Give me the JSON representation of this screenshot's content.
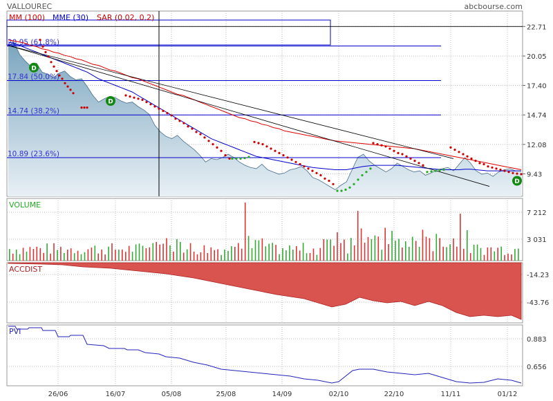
{
  "header": {
    "symbol": "VALLOUREC",
    "source": "abcbourse.com"
  },
  "legend": [
    {
      "label": "MM (100)",
      "color": "#dd0000"
    },
    {
      "label": "MME (30)",
      "color": "#0000cc"
    },
    {
      "label": "SAR (0.02, 0.2)",
      "color": "#cc0000"
    }
  ],
  "colors": {
    "price_fill_top": "#7aa5bf",
    "price_fill_bottom": "#e8f0f5",
    "price_line": "#4a6f8a",
    "mm100": "#dd0000",
    "mme30": "#0000cc",
    "fib": "#0000cc",
    "sar_red": "#cc0000",
    "sar_green": "#22aa22",
    "vol_up": "#33aa33",
    "vol_down": "#dd3333",
    "accdist_fill": "#d9534f",
    "pvi": "#2222bb",
    "grid": "#bbbbbb",
    "dividend": "#118811"
  },
  "chart_data": {
    "type": "line",
    "x_ticks": [
      "26/06",
      "16/07",
      "05/08",
      "25/08",
      "14/09",
      "02/10",
      "22/10",
      "11/11",
      "01/12"
    ],
    "price_panel": {
      "y_ticks": [
        "22.71",
        "20.05",
        "17.40",
        "14.74",
        "12.08",
        "9.43"
      ],
      "ylim": [
        7.4,
        24.1
      ],
      "close": [
        21.0,
        21.3,
        20.2,
        19.6,
        19.1,
        19.4,
        18.6,
        18.4,
        18.1,
        18.5,
        18.7,
        18.2,
        17.9,
        18.0,
        17.3,
        16.5,
        15.9,
        16.2,
        16.4,
        16.3,
        16.0,
        15.8,
        15.9,
        15.5,
        15.2,
        14.8,
        13.8,
        13.2,
        12.8,
        12.6,
        12.9,
        12.4,
        12.0,
        11.6,
        11.1,
        10.5,
        10.8,
        10.7,
        10.9,
        11.2,
        10.9,
        10.5,
        10.2,
        10.0,
        9.9,
        10.3,
        9.8,
        9.6,
        9.4,
        9.5,
        9.8,
        9.9,
        10.1,
        9.7,
        9.1,
        8.9,
        8.6,
        8.3,
        8.0,
        8.4,
        8.7,
        9.8,
        10.9,
        11.2,
        10.6,
        10.2,
        9.9,
        9.6,
        9.9,
        10.4,
        10.1,
        9.8,
        9.6,
        9.7,
        9.3,
        9.5,
        9.8,
        9.9,
        10.0,
        9.7,
        10.3,
        10.9,
        10.4,
        9.7,
        9.4,
        9.5,
        9.2,
        9.6,
        9.8,
        9.9,
        9.7,
        9.7
      ],
      "mme30": [
        21.3,
        21.2,
        21.0,
        20.8,
        20.6,
        20.4,
        20.2,
        20.0,
        19.8,
        19.6,
        19.4,
        19.2,
        19.0,
        18.8,
        18.6,
        18.3,
        18.0,
        17.8,
        17.6,
        17.4,
        17.2,
        17.0,
        16.8,
        16.5,
        16.2,
        15.9,
        15.6,
        15.3,
        15.0,
        14.7,
        14.4,
        14.1,
        13.8,
        13.5,
        13.2,
        12.9,
        12.6,
        12.4,
        12.2,
        12.0,
        11.8,
        11.6,
        11.4,
        11.2,
        11.0,
        10.9,
        10.8,
        10.7,
        10.6,
        10.5,
        10.4,
        10.3,
        10.2,
        10.1,
        10.0,
        9.95,
        9.9,
        9.85,
        9.8,
        9.8,
        9.8,
        9.9,
        10.0,
        10.1,
        10.15,
        10.2,
        10.2,
        10.2,
        10.2,
        10.2,
        10.15,
        10.1,
        10.05,
        10.0,
        9.95,
        9.9,
        9.85,
        9.8,
        9.8,
        9.8,
        9.8,
        9.85,
        9.85,
        9.8,
        9.75,
        9.7,
        9.7,
        9.7,
        9.7,
        9.7,
        9.7,
        9.7
      ],
      "mm100": [
        21.5,
        21.4,
        21.3,
        21.2,
        21.0,
        20.9,
        20.7,
        20.6,
        20.4,
        20.3,
        20.1,
        20.0,
        19.8,
        19.7,
        19.5,
        19.3,
        19.2,
        19.0,
        18.8,
        18.7,
        18.5,
        18.3,
        18.1,
        18.0,
        17.8,
        17.6,
        17.4,
        17.2,
        17.0,
        16.8,
        16.6,
        16.5,
        16.3,
        16.1,
        15.9,
        15.7,
        15.5,
        15.3,
        15.1,
        14.9,
        14.7,
        14.5,
        14.4,
        14.2,
        14.1,
        13.9,
        13.8,
        13.6,
        13.5,
        13.3,
        13.2,
        13.1,
        13.0,
        12.9,
        12.8,
        12.7,
        12.6,
        12.5,
        12.4,
        12.35,
        12.3,
        12.25,
        12.2,
        12.15,
        12.1,
        12.05,
        12.0,
        11.95,
        11.9,
        11.85,
        11.8,
        11.75,
        11.7,
        11.6,
        11.5,
        11.4,
        11.3,
        11.2,
        11.1,
        11.0,
        10.9,
        10.8,
        10.7,
        10.6,
        10.5,
        10.4,
        10.3,
        10.2,
        10.1,
        10.0,
        9.9,
        9.8
      ],
      "fib_levels": [
        {
          "value": 20.95,
          "label": "20.95  (61.8%)"
        },
        {
          "value": 17.84,
          "label": "17.84  (50.0%)"
        },
        {
          "value": 14.74,
          "label": "14.74  (38.2%)"
        },
        {
          "value": 10.89,
          "label": "10.89  (23.6%)"
        }
      ],
      "dividend_marker": "D"
    },
    "volume_panel": {
      "label": "VOLUME",
      "y_ticks": [
        "7 212",
        "3 031"
      ]
    },
    "accdist_panel": {
      "label": "ACCDIST",
      "y_ticks": [
        "-14.23",
        "-43.76"
      ]
    },
    "pvi_panel": {
      "label": "PVI",
      "y_ticks": [
        "0.883",
        "0.656"
      ]
    }
  }
}
